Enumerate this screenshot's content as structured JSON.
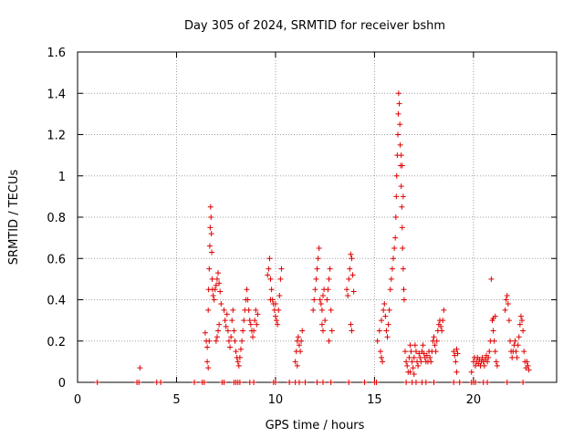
{
  "chart_data": {
    "type": "scatter",
    "title": "Day 305 of 2024, SRMTID for receiver bshm",
    "xlabel": "GPS time / hours",
    "ylabel": "SRMTID / TECUs",
    "xlim": [
      0,
      24.2
    ],
    "ylim": [
      0,
      1.6
    ],
    "x_ticks": [
      0,
      5,
      10,
      15,
      20
    ],
    "y_ticks": [
      0,
      0.2,
      0.4,
      0.6,
      0.8,
      1.0,
      1.2,
      1.4,
      1.6
    ],
    "x_tick_labels": [
      "0",
      "5",
      "10",
      "15",
      "20"
    ],
    "y_tick_labels": [
      "0",
      "0.2",
      "0.4",
      "0.6",
      "0.8",
      "1",
      "1.2",
      "1.4",
      "1.6"
    ],
    "grid": true,
    "marker": "plus",
    "color": "#e00000",
    "series": [
      {
        "name": "SRMTID",
        "points": [
          [
            1.0,
            0
          ],
          [
            3.0,
            0
          ],
          [
            3.1,
            0
          ],
          [
            3.15,
            0.07
          ],
          [
            4.0,
            0
          ],
          [
            4.2,
            0
          ],
          [
            5.9,
            0
          ],
          [
            6.3,
            0
          ],
          [
            6.4,
            0
          ],
          [
            6.45,
            0.24
          ],
          [
            6.5,
            0.2
          ],
          [
            6.55,
            0.17
          ],
          [
            6.6,
            0.35
          ],
          [
            6.62,
            0.45
          ],
          [
            6.65,
            0.55
          ],
          [
            6.68,
            0.66
          ],
          [
            6.7,
            0.75
          ],
          [
            6.72,
            0.85
          ],
          [
            6.74,
            0.8
          ],
          [
            6.76,
            0.72
          ],
          [
            6.78,
            0.63
          ],
          [
            6.8,
            0.5
          ],
          [
            6.82,
            0.45
          ],
          [
            6.85,
            0.42
          ],
          [
            6.9,
            0.4
          ],
          [
            6.95,
            0.45
          ],
          [
            7.0,
            0.47
          ],
          [
            7.05,
            0.5
          ],
          [
            7.1,
            0.53
          ],
          [
            7.15,
            0.48
          ],
          [
            7.2,
            0.44
          ],
          [
            7.25,
            0.38
          ],
          [
            6.55,
            0.1
          ],
          [
            6.6,
            0.07
          ],
          [
            6.65,
            0.2
          ],
          [
            7.0,
            0.2
          ],
          [
            7.05,
            0.22
          ],
          [
            7.1,
            0.25
          ],
          [
            7.15,
            0.28
          ],
          [
            7.4,
            0.35
          ],
          [
            7.45,
            0.3
          ],
          [
            7.5,
            0.27
          ],
          [
            7.55,
            0.33
          ],
          [
            7.6,
            0.25
          ],
          [
            7.65,
            0.2
          ],
          [
            7.7,
            0.17
          ],
          [
            7.75,
            0.22
          ],
          [
            7.8,
            0.3
          ],
          [
            7.85,
            0.35
          ],
          [
            7.9,
            0.25
          ],
          [
            7.95,
            0.2
          ],
          [
            8.0,
            0.15
          ],
          [
            8.05,
            0.12
          ],
          [
            8.1,
            0.1
          ],
          [
            8.15,
            0.08
          ],
          [
            8.2,
            0.12
          ],
          [
            8.25,
            0.16
          ],
          [
            8.3,
            0.2
          ],
          [
            8.35,
            0.25
          ],
          [
            8.4,
            0.3
          ],
          [
            8.45,
            0.35
          ],
          [
            8.5,
            0.4
          ],
          [
            8.55,
            0.45
          ],
          [
            8.6,
            0.4
          ],
          [
            8.65,
            0.35
          ],
          [
            8.7,
            0.3
          ],
          [
            8.75,
            0.28
          ],
          [
            8.8,
            0.25
          ],
          [
            8.85,
            0.22
          ],
          [
            8.9,
            0.25
          ],
          [
            8.95,
            0.3
          ],
          [
            9.0,
            0.35
          ],
          [
            9.05,
            0.28
          ],
          [
            9.1,
            0.33
          ],
          [
            7.3,
            0
          ],
          [
            7.4,
            0
          ],
          [
            7.9,
            0
          ],
          [
            8.0,
            0
          ],
          [
            8.1,
            0
          ],
          [
            8.2,
            0
          ],
          [
            8.7,
            0
          ],
          [
            8.9,
            0
          ],
          [
            9.6,
            0.52
          ],
          [
            9.65,
            0.55
          ],
          [
            9.7,
            0.6
          ],
          [
            9.75,
            0.5
          ],
          [
            9.8,
            0.45
          ],
          [
            9.85,
            0.4
          ],
          [
            9.9,
            0.38
          ],
          [
            9.95,
            0.35
          ],
          [
            10.0,
            0.32
          ],
          [
            10.05,
            0.3
          ],
          [
            10.1,
            0.28
          ],
          [
            10.15,
            0.35
          ],
          [
            10.2,
            0.42
          ],
          [
            10.25,
            0.5
          ],
          [
            10.3,
            0.55
          ],
          [
            9.75,
            0.4
          ],
          [
            10.0,
            0.38
          ],
          [
            9.9,
            0
          ],
          [
            10.0,
            0
          ],
          [
            10.7,
            0
          ],
          [
            11.0,
            0.1
          ],
          [
            11.05,
            0.15
          ],
          [
            11.1,
            0.2
          ],
          [
            11.15,
            0.22
          ],
          [
            11.2,
            0.18
          ],
          [
            11.25,
            0.15
          ],
          [
            11.3,
            0.2
          ],
          [
            11.35,
            0.25
          ],
          [
            11.1,
            0.08
          ],
          [
            11.0,
            0
          ],
          [
            11.2,
            0
          ],
          [
            11.5,
            0
          ],
          [
            11.9,
            0.35
          ],
          [
            11.95,
            0.4
          ],
          [
            12.0,
            0.45
          ],
          [
            12.05,
            0.5
          ],
          [
            12.1,
            0.55
          ],
          [
            12.15,
            0.6
          ],
          [
            12.2,
            0.65
          ],
          [
            12.25,
            0.4
          ],
          [
            12.3,
            0.38
          ],
          [
            12.35,
            0.35
          ],
          [
            12.4,
            0.42
          ],
          [
            12.45,
            0.45
          ],
          [
            12.35,
            0.28
          ],
          [
            12.4,
            0.25
          ],
          [
            12.5,
            0.3
          ],
          [
            12.6,
            0.4
          ],
          [
            12.65,
            0.45
          ],
          [
            12.7,
            0.5
          ],
          [
            12.75,
            0.55
          ],
          [
            12.8,
            0.35
          ],
          [
            12.85,
            0.25
          ],
          [
            12.7,
            0.2
          ],
          [
            12.1,
            0
          ],
          [
            12.4,
            0
          ],
          [
            12.8,
            0
          ],
          [
            13.6,
            0.45
          ],
          [
            13.65,
            0.42
          ],
          [
            13.7,
            0.5
          ],
          [
            13.75,
            0.55
          ],
          [
            13.8,
            0.62
          ],
          [
            13.85,
            0.6
          ],
          [
            13.9,
            0.52
          ],
          [
            13.95,
            0.44
          ],
          [
            13.8,
            0.28
          ],
          [
            13.85,
            0.25
          ],
          [
            13.7,
            0
          ],
          [
            14.5,
            0
          ],
          [
            15.0,
            0
          ],
          [
            15.1,
            0
          ],
          [
            15.15,
            0.2
          ],
          [
            15.25,
            0.25
          ],
          [
            15.35,
            0.3
          ],
          [
            15.45,
            0.35
          ],
          [
            15.5,
            0.38
          ],
          [
            15.55,
            0.32
          ],
          [
            15.6,
            0.25
          ],
          [
            15.65,
            0.22
          ],
          [
            15.7,
            0.28
          ],
          [
            15.75,
            0.35
          ],
          [
            15.3,
            0.15
          ],
          [
            15.35,
            0.12
          ],
          [
            15.4,
            0.1
          ],
          [
            15.8,
            0.45
          ],
          [
            15.85,
            0.5
          ],
          [
            15.9,
            0.55
          ],
          [
            15.95,
            0.6
          ],
          [
            16.0,
            0.65
          ],
          [
            16.05,
            0.7
          ],
          [
            16.08,
            0.8
          ],
          [
            16.1,
            0.9
          ],
          [
            16.12,
            1.0
          ],
          [
            16.15,
            1.1
          ],
          [
            16.18,
            1.2
          ],
          [
            16.2,
            1.3
          ],
          [
            16.22,
            1.4
          ],
          [
            16.25,
            1.35
          ],
          [
            16.28,
            1.25
          ],
          [
            16.3,
            1.15
          ],
          [
            16.32,
            1.05
          ],
          [
            16.35,
            0.95
          ],
          [
            16.38,
            0.85
          ],
          [
            16.4,
            0.75
          ],
          [
            16.42,
            0.65
          ],
          [
            16.45,
            0.55
          ],
          [
            16.48,
            0.45
          ],
          [
            16.5,
            0.4
          ],
          [
            16.45,
            0.9
          ],
          [
            16.4,
            1.05
          ],
          [
            16.35,
            1.1
          ],
          [
            16.55,
            0.15
          ],
          [
            16.6,
            0.1
          ],
          [
            16.65,
            0.08
          ],
          [
            16.7,
            0.05
          ],
          [
            16.75,
            0.12
          ],
          [
            16.8,
            0.18
          ],
          [
            16.85,
            0.15
          ],
          [
            16.9,
            0.1
          ],
          [
            16.95,
            0.07
          ],
          [
            17.0,
            0.12
          ],
          [
            17.05,
            0.18
          ],
          [
            17.1,
            0.15
          ],
          [
            17.15,
            0.1
          ],
          [
            17.2,
            0.08
          ],
          [
            17.25,
            0.14
          ],
          [
            17.3,
            0.12
          ],
          [
            17.35,
            0.1
          ],
          [
            17.4,
            0.15
          ],
          [
            17.45,
            0.18
          ],
          [
            17.5,
            0.14
          ],
          [
            17.55,
            0.12
          ],
          [
            17.6,
            0.1
          ],
          [
            17.65,
            0.13
          ],
          [
            17.7,
            0.1
          ],
          [
            17.75,
            0.15
          ],
          [
            17.8,
            0.12
          ],
          [
            17.85,
            0.1
          ],
          [
            17.9,
            0.15
          ],
          [
            17.95,
            0.2
          ],
          [
            18.0,
            0.22
          ],
          [
            18.05,
            0.18
          ],
          [
            18.1,
            0.15
          ],
          [
            18.15,
            0.2
          ],
          [
            18.2,
            0.25
          ],
          [
            18.25,
            0.28
          ],
          [
            18.3,
            0.3
          ],
          [
            18.35,
            0.27
          ],
          [
            18.4,
            0.25
          ],
          [
            18.45,
            0.3
          ],
          [
            18.5,
            0.35
          ],
          [
            16.8,
            0.05
          ],
          [
            17.0,
            0.04
          ],
          [
            16.6,
            0
          ],
          [
            16.9,
            0
          ],
          [
            17.1,
            0
          ],
          [
            17.4,
            0
          ],
          [
            17.6,
            0
          ],
          [
            18.0,
            0
          ],
          [
            19.0,
            0.15
          ],
          [
            19.05,
            0.13
          ],
          [
            19.1,
            0.1
          ],
          [
            19.15,
            0.16
          ],
          [
            19.2,
            0.14
          ],
          [
            19.15,
            0.05
          ],
          [
            19.0,
            0
          ],
          [
            19.3,
            0
          ],
          [
            19.9,
            0
          ],
          [
            20.0,
            0
          ],
          [
            20.1,
            0
          ],
          [
            20.5,
            0
          ],
          [
            20.7,
            0
          ],
          [
            19.9,
            0.05
          ],
          [
            20.0,
            0.1
          ],
          [
            20.05,
            0.12
          ],
          [
            20.1,
            0.08
          ],
          [
            20.15,
            0.1
          ],
          [
            20.2,
            0.12
          ],
          [
            20.25,
            0.09
          ],
          [
            20.3,
            0.11
          ],
          [
            20.35,
            0.08
          ],
          [
            20.4,
            0.1
          ],
          [
            20.45,
            0.12
          ],
          [
            20.5,
            0.1
          ],
          [
            20.55,
            0.08
          ],
          [
            20.6,
            0.11
          ],
          [
            20.65,
            0.13
          ],
          [
            20.7,
            0.1
          ],
          [
            20.75,
            0.12
          ],
          [
            20.8,
            0.15
          ],
          [
            20.85,
            0.2
          ],
          [
            20.9,
            0.5
          ],
          [
            20.95,
            0.3
          ],
          [
            21.0,
            0.25
          ],
          [
            21.05,
            0.2
          ],
          [
            21.1,
            0.15
          ],
          [
            21.15,
            0.1
          ],
          [
            21.2,
            0.08
          ],
          [
            21.1,
            0.32
          ],
          [
            21.0,
            0.31
          ],
          [
            21.6,
            0.35
          ],
          [
            21.65,
            0.4
          ],
          [
            21.7,
            0.42
          ],
          [
            21.75,
            0.38
          ],
          [
            21.8,
            0.3
          ],
          [
            21.85,
            0.2
          ],
          [
            21.9,
            0.15
          ],
          [
            21.95,
            0.12
          ],
          [
            22.0,
            0.15
          ],
          [
            22.05,
            0.18
          ],
          [
            22.1,
            0.2
          ],
          [
            22.15,
            0.15
          ],
          [
            22.2,
            0.12
          ],
          [
            22.25,
            0.18
          ],
          [
            22.3,
            0.22
          ],
          [
            22.35,
            0.28
          ],
          [
            22.4,
            0.32
          ],
          [
            22.45,
            0.3
          ],
          [
            22.5,
            0.25
          ],
          [
            22.55,
            0.15
          ],
          [
            22.6,
            0.1
          ],
          [
            22.65,
            0.07
          ],
          [
            22.7,
            0.1
          ],
          [
            22.75,
            0.08
          ],
          [
            22.8,
            0.06
          ],
          [
            21.7,
            0
          ],
          [
            22.5,
            0
          ]
        ]
      }
    ]
  }
}
